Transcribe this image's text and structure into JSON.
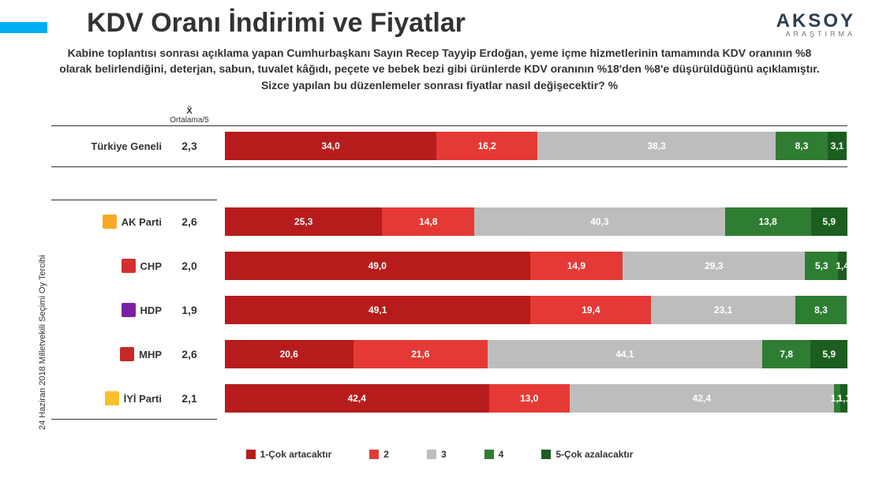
{
  "accent_color": "#00aeef",
  "logo": {
    "top": "AKSOY",
    "bottom": "ARAŞTIRMA",
    "color_top": "#2c3e50",
    "color_bottom": "#6c757d"
  },
  "title": "KDV Oranı İndirimi ve Fiyatlar",
  "subtitle": "Kabine toplantısı sonrası açıklama yapan Cumhurbaşkanı Sayın Recep Tayyip Erdoğan, yeme içme hizmetlerinin tamamında KDV oranının %8 olarak belirlendiğini, deterjan, sabun, tuvalet kâğıdı, peçete ve bebek bezi gibi ürünlerde KDV oranının %18'den %8'e düşürüldüğünü açıklamıştır.",
  "question": "Sizce yapılan bu düzenlemeler sonrası fiyatlar nasıl değişecektir? %",
  "avg_header": "X̄",
  "avg_subheader": "Ortalama/5",
  "side_label": "24 Haziran 2018 Milletvekili Seçimi Oy Tercihi",
  "colors": {
    "s1": "#b71c1c",
    "s2": "#e53935",
    "s3": "#bdbdbd",
    "s4": "#2e7d32",
    "s5": "#1b5e20"
  },
  "legend": [
    {
      "key": "s1",
      "label": "1-Çok artacaktır"
    },
    {
      "key": "s2",
      "label": "2"
    },
    {
      "key": "s3",
      "label": "3"
    },
    {
      "key": "s4",
      "label": "4"
    },
    {
      "key": "s5",
      "label": "5-Çok azalacaktır"
    }
  ],
  "overall": {
    "label": "Türkiye Geneli",
    "avg": "2,3",
    "segments": [
      {
        "v": 34.0,
        "t": "34,0",
        "c": "s1"
      },
      {
        "v": 16.2,
        "t": "16,2",
        "c": "s2"
      },
      {
        "v": 38.3,
        "t": "38,3",
        "c": "s3"
      },
      {
        "v": 8.3,
        "t": "8,3",
        "c": "s4"
      },
      {
        "v": 3.1,
        "t": "3,1",
        "c": "s5"
      }
    ]
  },
  "rows": [
    {
      "label": "AK Parti",
      "icon_color": "#f9a825",
      "avg": "2,6",
      "segments": [
        {
          "v": 25.3,
          "t": "25,3",
          "c": "s1"
        },
        {
          "v": 14.8,
          "t": "14,8",
          "c": "s2"
        },
        {
          "v": 40.3,
          "t": "40,3",
          "c": "s3"
        },
        {
          "v": 13.8,
          "t": "13,8",
          "c": "s4"
        },
        {
          "v": 5.9,
          "t": "5,9",
          "c": "s5"
        }
      ]
    },
    {
      "label": "CHP",
      "icon_color": "#d32f2f",
      "avg": "2,0",
      "segments": [
        {
          "v": 49.0,
          "t": "49,0",
          "c": "s1"
        },
        {
          "v": 14.9,
          "t": "14,9",
          "c": "s2"
        },
        {
          "v": 29.3,
          "t": "29,3",
          "c": "s3"
        },
        {
          "v": 5.3,
          "t": "5,3",
          "c": "s4"
        },
        {
          "v": 1.4,
          "t": "1,4",
          "c": "s5"
        }
      ]
    },
    {
      "label": "HDP",
      "icon_color": "#7b1fa2",
      "avg": "1,9",
      "segments": [
        {
          "v": 49.1,
          "t": "49,1",
          "c": "s1"
        },
        {
          "v": 19.4,
          "t": "19,4",
          "c": "s2"
        },
        {
          "v": 23.1,
          "t": "23,1",
          "c": "s3"
        },
        {
          "v": 8.3,
          "t": "8,3",
          "c": "s4"
        }
      ]
    },
    {
      "label": "MHP",
      "icon_color": "#c62828",
      "avg": "2,6",
      "segments": [
        {
          "v": 20.6,
          "t": "20,6",
          "c": "s1"
        },
        {
          "v": 21.6,
          "t": "21,6",
          "c": "s2"
        },
        {
          "v": 44.1,
          "t": "44,1",
          "c": "s3"
        },
        {
          "v": 7.8,
          "t": "7,8",
          "c": "s4"
        },
        {
          "v": 5.9,
          "t": "5,9",
          "c": "s5"
        }
      ]
    },
    {
      "label": "İYİ Parti",
      "icon_color": "#fbc02d",
      "avg": "2,1",
      "segments": [
        {
          "v": 42.4,
          "t": "42,4",
          "c": "s1"
        },
        {
          "v": 13.0,
          "t": "13,0",
          "c": "s2"
        },
        {
          "v": 42.4,
          "t": "42,4",
          "c": "s3"
        },
        {
          "v": 1.1,
          "t": "1,1",
          "c": "s4"
        },
        {
          "v": 1.1,
          "t": "1,1",
          "c": "s5"
        }
      ]
    }
  ]
}
